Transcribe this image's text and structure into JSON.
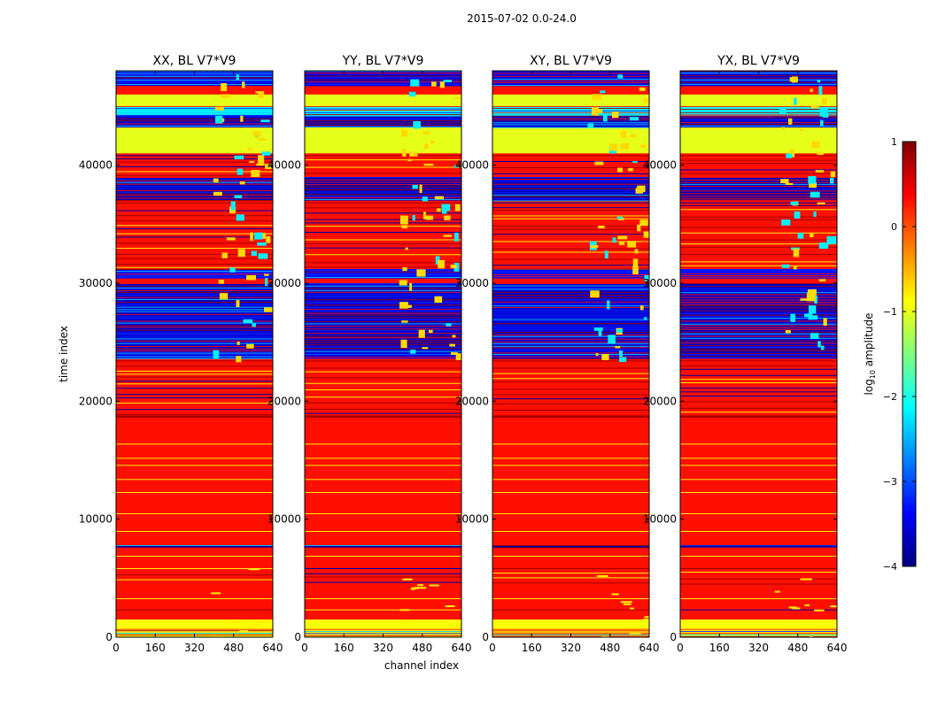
{
  "suptitle": "2015-07-02 0.0-24.0",
  "xlabel": "channel index",
  "ylabel": "time index",
  "colorbar": {
    "label": "log10 amplitude",
    "label_main": "log",
    "label_sub": "10",
    "label_rest": " amplitude",
    "range": [
      -4,
      1
    ],
    "ticks": [
      {
        "value": 1,
        "label": "1"
      },
      {
        "value": 0,
        "label": "0"
      },
      {
        "value": -1,
        "label": "−1"
      },
      {
        "value": -2,
        "label": "−2"
      },
      {
        "value": -3,
        "label": "−3"
      },
      {
        "value": -4,
        "label": "−4"
      }
    ]
  },
  "chart_data": {
    "type": "heatmap",
    "colormap": "jet",
    "value_quantity": "log10 amplitude",
    "xlim": [
      0,
      640
    ],
    "ylim": [
      0,
      48000
    ],
    "xticks": [
      0,
      160,
      320,
      480,
      640
    ],
    "yticks": [
      0,
      10000,
      20000,
      30000,
      40000
    ],
    "panels": [
      {
        "title": "XX, BL V7*V9"
      },
      {
        "title": "YY, BL V7*V9"
      },
      {
        "title": "XY, BL V7*V9"
      },
      {
        "title": "YX, BL V7*V9"
      }
    ],
    "row_bands": [
      {
        "t0": 0,
        "t1": 700,
        "pattern": "mix",
        "v": -0.8
      },
      {
        "t0": 700,
        "t1": 1500,
        "pattern": "solid",
        "v": -0.9
      },
      {
        "t0": 1500,
        "t1": 2000,
        "pattern": "solid",
        "v": 0.3
      },
      {
        "t0": 2000,
        "t1": 2500,
        "pattern": "striped",
        "v": 0.3
      },
      {
        "t0": 2500,
        "t1": 4500,
        "pattern": "solid",
        "v": 0.3
      },
      {
        "t0": 4500,
        "t1": 6000,
        "pattern": "striped",
        "v": 0.3
      },
      {
        "t0": 6000,
        "t1": 7600,
        "pattern": "solid",
        "v": 0.3
      },
      {
        "t0": 7600,
        "t1": 7800,
        "pattern": "noisy",
        "v": -3.8
      },
      {
        "t0": 7800,
        "t1": 18600,
        "pattern": "solid",
        "v": 0.3
      },
      {
        "t0": 18600,
        "t1": 18800,
        "pattern": "solid",
        "v": 0.8
      },
      {
        "t0": 18800,
        "t1": 23600,
        "pattern": "striped",
        "v": 0.3
      },
      {
        "t0": 23600,
        "t1": 24000,
        "pattern": "noisy",
        "v": -3.5
      },
      {
        "t0": 24000,
        "t1": 30000,
        "pattern": "noisy",
        "v": -3.6
      },
      {
        "t0": 30000,
        "t1": 30400,
        "pattern": "solid",
        "v": 0.3
      },
      {
        "t0": 30400,
        "t1": 31200,
        "pattern": "noisy",
        "v": -3.3
      },
      {
        "t0": 31200,
        "t1": 37000,
        "pattern": "striped",
        "v": 0.3
      },
      {
        "t0": 37000,
        "t1": 39000,
        "pattern": "noisy",
        "v": -3.7
      },
      {
        "t0": 39000,
        "t1": 41000,
        "pattern": "striped",
        "v": 0.3
      },
      {
        "t0": 41000,
        "t1": 43200,
        "pattern": "solid",
        "v": -1.0
      },
      {
        "t0": 43200,
        "t1": 44200,
        "pattern": "noisy",
        "v": -3.6
      },
      {
        "t0": 44200,
        "t1": 45000,
        "pattern": "noisy",
        "v": -2.1
      },
      {
        "t0": 45000,
        "t1": 46000,
        "pattern": "solid",
        "v": -1.0
      },
      {
        "t0": 46000,
        "t1": 46700,
        "pattern": "solid",
        "v": 0.3
      },
      {
        "t0": 46700,
        "t1": 48000,
        "pattern": "noisy",
        "v": -3.5
      }
    ],
    "narrow_lines": [
      {
        "t": 900,
        "v": -0.9
      },
      {
        "t": 3300,
        "v": -0.8
      },
      {
        "t": 6900,
        "v": -0.8
      },
      {
        "t": 9000,
        "v": -0.8
      },
      {
        "t": 10500,
        "v": -0.8
      },
      {
        "t": 12300,
        "v": -0.8
      },
      {
        "t": 13400,
        "v": -0.8
      },
      {
        "t": 14600,
        "v": -0.8
      },
      {
        "t": 15200,
        "v": -0.8
      },
      {
        "t": 16400,
        "v": -0.8
      }
    ],
    "high_band_channels": [
      384,
      620
    ]
  }
}
